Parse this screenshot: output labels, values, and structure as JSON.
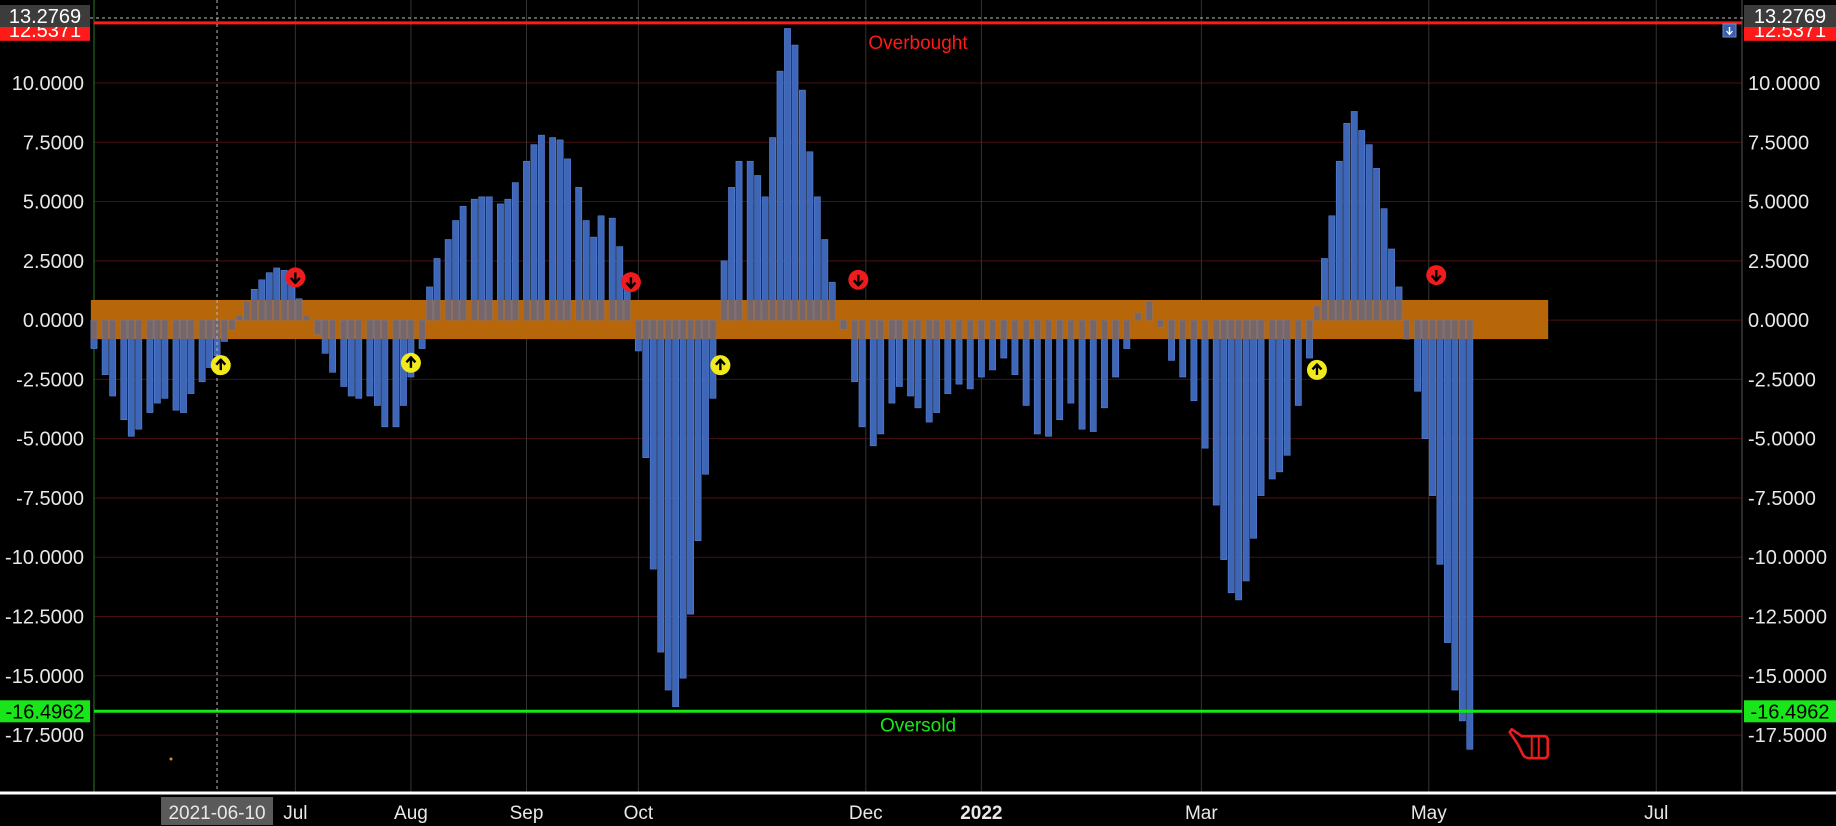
{
  "colors": {
    "background": "#000000",
    "bar": "#3d66b8",
    "bar_edge": "#5a82d0",
    "band": "#b8660a",
    "overbought": "#ff1a1a",
    "oversold": "#19e619",
    "buy_signal": "#f2ea1a",
    "sell_signal": "#ee1c1c",
    "grid_h": "#4a1010",
    "grid_v": "#333333"
  },
  "chart_data": {
    "type": "bar",
    "y_ticks": [
      "10.0000",
      "7.5000",
      "5.0000",
      "2.5000",
      "0.0000",
      "-2.5000",
      "-5.0000",
      "-7.5000",
      "-10.0000",
      "-12.5000",
      "-15.0000",
      "-17.5000"
    ],
    "y_tick_values": [
      10,
      7.5,
      5,
      2.5,
      0,
      -2.5,
      -5,
      -7.5,
      -10,
      -12.5,
      -15,
      -17.5
    ],
    "ylim": [
      -19.9,
      13.5
    ],
    "x_labels": [
      {
        "label": "Jul",
        "date": "2021-07-01"
      },
      {
        "label": "Aug",
        "date": "2021-08-01"
      },
      {
        "label": "Sep",
        "date": "2021-09-01"
      },
      {
        "label": "Oct",
        "date": "2021-10-01"
      },
      {
        "label": "Dec",
        "date": "2021-12-01"
      },
      {
        "label": "2022",
        "date": "2022-01-01",
        "bold": true
      },
      {
        "label": "Mar",
        "date": "2022-03-01"
      },
      {
        "label": "May",
        "date": "2022-05-01"
      },
      {
        "label": "Jul",
        "date": "2022-07-01"
      }
    ],
    "x_range": [
      "2021-05-08",
      "2022-07-24"
    ],
    "crosshair": {
      "date": "2021-06-10",
      "label": "2021-06-10",
      "value": "13.2769"
    },
    "top_value_label": "13.2769",
    "overbought": {
      "value": 12.5371,
      "label": "12.5371",
      "text": "Overbought"
    },
    "oversold": {
      "value": -16.4962,
      "label": "-16.4962",
      "text": "Oversold"
    },
    "neutral_band": {
      "from": -0.8,
      "to": 0.85,
      "start": "2021-05-08",
      "end": "2022-06-02"
    },
    "bars": [
      {
        "date": "2021-05-08",
        "value": -1.2
      },
      {
        "date": "2021-05-11",
        "value": -2.3
      },
      {
        "date": "2021-05-13",
        "value": -3.2
      },
      {
        "date": "2021-05-16",
        "value": -4.2
      },
      {
        "date": "2021-05-18",
        "value": -4.9
      },
      {
        "date": "2021-05-20",
        "value": -4.6
      },
      {
        "date": "2021-05-23",
        "value": -3.9
      },
      {
        "date": "2021-05-25",
        "value": -3.5
      },
      {
        "date": "2021-05-27",
        "value": -3.3
      },
      {
        "date": "2021-05-30",
        "value": -3.8
      },
      {
        "date": "2021-06-01",
        "value": -3.9
      },
      {
        "date": "2021-06-03",
        "value": -3.1
      },
      {
        "date": "2021-06-06",
        "value": -2.6
      },
      {
        "date": "2021-06-08",
        "value": -2.0
      },
      {
        "date": "2021-06-10",
        "value": -1.5
      },
      {
        "date": "2021-06-12",
        "value": -0.9
      },
      {
        "date": "2021-06-14",
        "value": -0.4
      },
      {
        "date": "2021-06-16",
        "value": 0.2
      },
      {
        "date": "2021-06-18",
        "value": 0.8
      },
      {
        "date": "2021-06-20",
        "value": 1.3
      },
      {
        "date": "2021-06-22",
        "value": 1.7
      },
      {
        "date": "2021-06-24",
        "value": 2.0
      },
      {
        "date": "2021-06-26",
        "value": 2.2
      },
      {
        "date": "2021-06-28",
        "value": 2.1
      },
      {
        "date": "2021-06-30",
        "value": 1.6
      },
      {
        "date": "2021-07-02",
        "value": 0.9
      },
      {
        "date": "2021-07-04",
        "value": 0.2
      },
      {
        "date": "2021-07-07",
        "value": -0.6
      },
      {
        "date": "2021-07-09",
        "value": -1.4
      },
      {
        "date": "2021-07-11",
        "value": -2.2
      },
      {
        "date": "2021-07-14",
        "value": -2.8
      },
      {
        "date": "2021-07-16",
        "value": -3.2
      },
      {
        "date": "2021-07-18",
        "value": -3.3
      },
      {
        "date": "2021-07-21",
        "value": -3.2
      },
      {
        "date": "2021-07-23",
        "value": -3.6
      },
      {
        "date": "2021-07-25",
        "value": -4.5
      },
      {
        "date": "2021-07-28",
        "value": -4.5
      },
      {
        "date": "2021-07-30",
        "value": -3.6
      },
      {
        "date": "2021-08-01",
        "value": -2.4
      },
      {
        "date": "2021-08-04",
        "value": -1.2
      },
      {
        "date": "2021-08-06",
        "value": 1.4
      },
      {
        "date": "2021-08-08",
        "value": 2.6
      },
      {
        "date": "2021-08-11",
        "value": 3.4
      },
      {
        "date": "2021-08-13",
        "value": 4.2
      },
      {
        "date": "2021-08-15",
        "value": 4.8
      },
      {
        "date": "2021-08-18",
        "value": 5.1
      },
      {
        "date": "2021-08-20",
        "value": 5.2
      },
      {
        "date": "2021-08-22",
        "value": 5.2
      },
      {
        "date": "2021-08-25",
        "value": 4.9
      },
      {
        "date": "2021-08-27",
        "value": 5.1
      },
      {
        "date": "2021-08-29",
        "value": 5.8
      },
      {
        "date": "2021-09-01",
        "value": 6.7
      },
      {
        "date": "2021-09-03",
        "value": 7.4
      },
      {
        "date": "2021-09-05",
        "value": 7.8
      },
      {
        "date": "2021-09-08",
        "value": 7.7
      },
      {
        "date": "2021-09-10",
        "value": 7.6
      },
      {
        "date": "2021-09-12",
        "value": 6.8
      },
      {
        "date": "2021-09-15",
        "value": 5.6
      },
      {
        "date": "2021-09-17",
        "value": 4.2
      },
      {
        "date": "2021-09-19",
        "value": 3.5
      },
      {
        "date": "2021-09-21",
        "value": 4.4
      },
      {
        "date": "2021-09-24",
        "value": 4.3
      },
      {
        "date": "2021-09-26",
        "value": 3.1
      },
      {
        "date": "2021-09-28",
        "value": 1.8
      },
      {
        "date": "2021-10-01",
        "value": -1.3
      },
      {
        "date": "2021-10-03",
        "value": -5.8
      },
      {
        "date": "2021-10-05",
        "value": -10.5
      },
      {
        "date": "2021-10-07",
        "value": -14.0
      },
      {
        "date": "2021-10-09",
        "value": -15.6
      },
      {
        "date": "2021-10-11",
        "value": -16.3
      },
      {
        "date": "2021-10-13",
        "value": -15.1
      },
      {
        "date": "2021-10-15",
        "value": -12.4
      },
      {
        "date": "2021-10-17",
        "value": -9.3
      },
      {
        "date": "2021-10-19",
        "value": -6.5
      },
      {
        "date": "2021-10-21",
        "value": -3.3
      },
      {
        "date": "2021-10-24",
        "value": 2.5
      },
      {
        "date": "2021-10-26",
        "value": 5.6
      },
      {
        "date": "2021-10-28",
        "value": 6.7
      },
      {
        "date": "2021-10-31",
        "value": 6.7
      },
      {
        "date": "2021-11-02",
        "value": 6.1
      },
      {
        "date": "2021-11-04",
        "value": 5.2
      },
      {
        "date": "2021-11-06",
        "value": 7.7
      },
      {
        "date": "2021-11-08",
        "value": 10.5
      },
      {
        "date": "2021-11-10",
        "value": 12.3
      },
      {
        "date": "2021-11-12",
        "value": 11.6
      },
      {
        "date": "2021-11-14",
        "value": 9.7
      },
      {
        "date": "2021-11-16",
        "value": 7.1
      },
      {
        "date": "2021-11-18",
        "value": 5.2
      },
      {
        "date": "2021-11-20",
        "value": 3.4
      },
      {
        "date": "2021-11-22",
        "value": 1.6
      },
      {
        "date": "2021-11-25",
        "value": -0.4
      },
      {
        "date": "2021-11-28",
        "value": -2.6
      },
      {
        "date": "2021-11-30",
        "value": -4.5
      },
      {
        "date": "2021-12-03",
        "value": -5.3
      },
      {
        "date": "2021-12-05",
        "value": -4.8
      },
      {
        "date": "2021-12-08",
        "value": -3.5
      },
      {
        "date": "2021-12-10",
        "value": -2.8
      },
      {
        "date": "2021-12-13",
        "value": -3.2
      },
      {
        "date": "2021-12-15",
        "value": -3.7
      },
      {
        "date": "2021-12-18",
        "value": -4.3
      },
      {
        "date": "2021-12-20",
        "value": -3.9
      },
      {
        "date": "2021-12-23",
        "value": -3.1
      },
      {
        "date": "2021-12-26",
        "value": -2.7
      },
      {
        "date": "2021-12-29",
        "value": -2.9
      },
      {
        "date": "2022-01-01",
        "value": -2.4
      },
      {
        "date": "2022-01-04",
        "value": -2.1
      },
      {
        "date": "2022-01-07",
        "value": -1.6
      },
      {
        "date": "2022-01-10",
        "value": -2.3
      },
      {
        "date": "2022-01-13",
        "value": -3.6
      },
      {
        "date": "2022-01-16",
        "value": -4.8
      },
      {
        "date": "2022-01-19",
        "value": -4.9
      },
      {
        "date": "2022-01-22",
        "value": -4.2
      },
      {
        "date": "2022-01-25",
        "value": -3.5
      },
      {
        "date": "2022-01-28",
        "value": -4.6
      },
      {
        "date": "2022-01-31",
        "value": -4.7
      },
      {
        "date": "2022-02-03",
        "value": -3.7
      },
      {
        "date": "2022-02-06",
        "value": -2.4
      },
      {
        "date": "2022-02-09",
        "value": -1.2
      },
      {
        "date": "2022-02-12",
        "value": 0.3
      },
      {
        "date": "2022-02-15",
        "value": 0.8
      },
      {
        "date": "2022-02-18",
        "value": -0.3
      },
      {
        "date": "2022-02-21",
        "value": -1.7
      },
      {
        "date": "2022-02-24",
        "value": -2.4
      },
      {
        "date": "2022-02-27",
        "value": -3.4
      },
      {
        "date": "2022-03-02",
        "value": -5.4
      },
      {
        "date": "2022-03-05",
        "value": -7.8
      },
      {
        "date": "2022-03-07",
        "value": -10.1
      },
      {
        "date": "2022-03-09",
        "value": -11.5
      },
      {
        "date": "2022-03-11",
        "value": -11.8
      },
      {
        "date": "2022-03-13",
        "value": -11.0
      },
      {
        "date": "2022-03-15",
        "value": -9.2
      },
      {
        "date": "2022-03-17",
        "value": -7.4
      },
      {
        "date": "2022-03-20",
        "value": -6.7
      },
      {
        "date": "2022-03-22",
        "value": -6.4
      },
      {
        "date": "2022-03-24",
        "value": -5.7
      },
      {
        "date": "2022-03-27",
        "value": -3.6
      },
      {
        "date": "2022-03-30",
        "value": -1.6
      },
      {
        "date": "2022-04-01",
        "value": 0.6
      },
      {
        "date": "2022-04-03",
        "value": 2.6
      },
      {
        "date": "2022-04-05",
        "value": 4.4
      },
      {
        "date": "2022-04-07",
        "value": 6.7
      },
      {
        "date": "2022-04-09",
        "value": 8.3
      },
      {
        "date": "2022-04-11",
        "value": 8.8
      },
      {
        "date": "2022-04-13",
        "value": 8.0
      },
      {
        "date": "2022-04-15",
        "value": 7.4
      },
      {
        "date": "2022-04-17",
        "value": 6.4
      },
      {
        "date": "2022-04-19",
        "value": 4.7
      },
      {
        "date": "2022-04-21",
        "value": 3.0
      },
      {
        "date": "2022-04-23",
        "value": 1.4
      },
      {
        "date": "2022-04-25",
        "value": -0.8
      },
      {
        "date": "2022-04-28",
        "value": -3.0
      },
      {
        "date": "2022-04-30",
        "value": -5.0
      },
      {
        "date": "2022-05-02",
        "value": -7.4
      },
      {
        "date": "2022-05-04",
        "value": -10.3
      },
      {
        "date": "2022-05-06",
        "value": -13.6
      },
      {
        "date": "2022-05-08",
        "value": -15.6
      },
      {
        "date": "2022-05-10",
        "value": -16.9
      },
      {
        "date": "2022-05-12",
        "value": -18.1
      }
    ],
    "buy_signals": [
      {
        "date": "2021-06-11",
        "value": -1.9
      },
      {
        "date": "2021-08-01",
        "value": -1.8
      },
      {
        "date": "2021-10-23",
        "value": -1.9
      },
      {
        "date": "2022-04-01",
        "value": -2.1
      }
    ],
    "sell_signals": [
      {
        "date": "2021-07-01",
        "value": 1.8
      },
      {
        "date": "2021-09-29",
        "value": 1.6
      },
      {
        "date": "2021-11-29",
        "value": 1.7
      },
      {
        "date": "2022-05-03",
        "value": 1.9
      }
    ],
    "pointer_marker": {
      "date": "2022-05-27",
      "value": -17.8
    }
  }
}
